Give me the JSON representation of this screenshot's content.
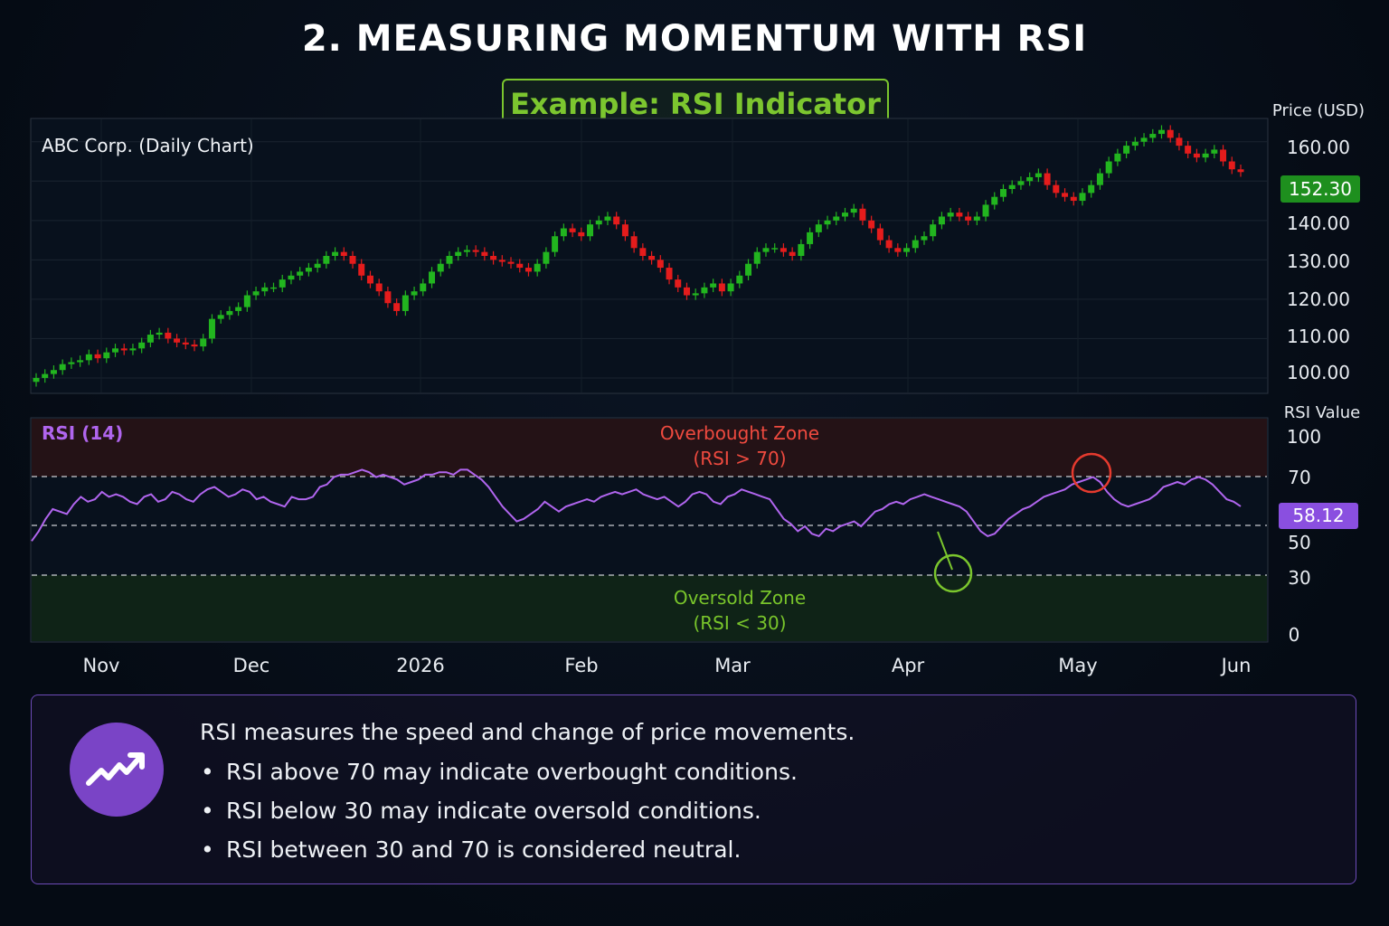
{
  "title": "2. MEASURING MOMENTUM WITH RSI",
  "subtitle": "Example: RSI Indicator",
  "chart_data": [
    {
      "type": "candlestick",
      "title": "ABC Corp. (Daily Chart)",
      "ylabel": "Price (USD)",
      "ylim": [
        97,
        165
      ],
      "yticks": [
        "160.00",
        "140.00",
        "130.00",
        "120.00",
        "110.00",
        "100.00"
      ],
      "last_price_label": "152.30",
      "x_labels": [
        "Nov",
        "Dec",
        "2026",
        "Feb",
        "Mar",
        "Apr",
        "May",
        "Jun"
      ],
      "up_color": "#22b51f",
      "down_color": "#e51c1c",
      "close": [
        100,
        101,
        102,
        103.5,
        104,
        104.5,
        106,
        105,
        106.5,
        107.5,
        107,
        107.5,
        109,
        111,
        111.5,
        110,
        109,
        108.5,
        108,
        110,
        115,
        116,
        117,
        118,
        121,
        122,
        123,
        123,
        125,
        126,
        127,
        128,
        129,
        131,
        132,
        131,
        129,
        126,
        124,
        122,
        119,
        117,
        121,
        122,
        124,
        127,
        129,
        131,
        132,
        132.5,
        132,
        131,
        130,
        129.5,
        129,
        128,
        127,
        129,
        132,
        136,
        138,
        137,
        136,
        139,
        140,
        141,
        139,
        136,
        133,
        131,
        130,
        128,
        125,
        123,
        121,
        121.5,
        123,
        124,
        122,
        124,
        126,
        129,
        132,
        133,
        133,
        132,
        131,
        134,
        137,
        139,
        140,
        141,
        142,
        143,
        140,
        138,
        135,
        133,
        132,
        133,
        135,
        136,
        139,
        141,
        142,
        141,
        140,
        141,
        144,
        146,
        148,
        149,
        150,
        151,
        152,
        149,
        147,
        146,
        145,
        147,
        149,
        152,
        155,
        157,
        159,
        160,
        161,
        162,
        163,
        161,
        159,
        157,
        156,
        157,
        158,
        155,
        153,
        152.3
      ]
    },
    {
      "type": "line",
      "title": "RSI (14)",
      "ylabel": "RSI Value",
      "ylim": [
        0,
        100
      ],
      "yticks": [
        100,
        70,
        50,
        30,
        0
      ],
      "current_value_label": "58.12",
      "overbought": {
        "label": "Overbought Zone",
        "condition": "(RSI > 70)",
        "level": 70
      },
      "oversold": {
        "label": "Oversold Zone",
        "condition": "(RSI < 30)",
        "level": 30
      },
      "line_color": "#b065ee",
      "values": [
        44,
        48,
        53,
        57,
        56,
        55,
        59,
        62,
        60,
        61,
        64,
        62,
        63,
        62,
        60,
        59,
        62,
        63,
        60,
        61,
        64,
        63,
        61,
        60,
        63,
        65,
        66,
        64,
        62,
        63,
        65,
        64,
        61,
        62,
        60,
        59,
        58,
        62,
        61,
        61,
        62,
        66,
        67,
        70,
        71,
        71,
        72,
        73,
        72,
        70,
        71,
        70,
        69,
        67,
        68,
        69,
        71,
        71,
        72,
        72,
        71,
        73,
        73,
        71,
        69,
        66,
        62,
        58,
        55,
        52,
        53,
        55,
        57,
        60,
        58,
        56,
        58,
        59,
        60,
        61,
        60,
        62,
        63,
        64,
        63,
        64,
        65,
        63,
        62,
        61,
        62,
        60,
        58,
        60,
        63,
        64,
        63,
        60,
        59,
        62,
        63,
        65,
        64,
        63,
        62,
        61,
        57,
        53,
        51,
        48,
        50,
        47,
        46,
        49,
        48,
        50,
        51,
        52,
        50,
        53,
        56,
        57,
        59,
        60,
        59,
        61,
        62,
        63,
        62,
        61,
        60,
        59,
        58,
        56,
        52,
        48,
        46,
        47,
        50,
        53,
        55,
        57,
        58,
        60,
        62,
        63,
        64,
        65,
        67,
        68,
        69,
        70,
        68,
        64,
        61,
        59,
        58,
        59,
        60,
        61,
        63,
        66,
        67,
        68,
        67,
        69,
        70,
        69,
        67,
        64,
        61,
        60,
        58.12
      ]
    }
  ],
  "info": {
    "lead": "RSI measures the speed and change of price movements.",
    "bullets": [
      "RSI above 70 may indicate overbought conditions.",
      "RSI below 30 may indicate oversold conditions.",
      "RSI between 30 and 70 is considered neutral."
    ],
    "icon": "trending-up-icon",
    "accent": "#7a44c6"
  }
}
